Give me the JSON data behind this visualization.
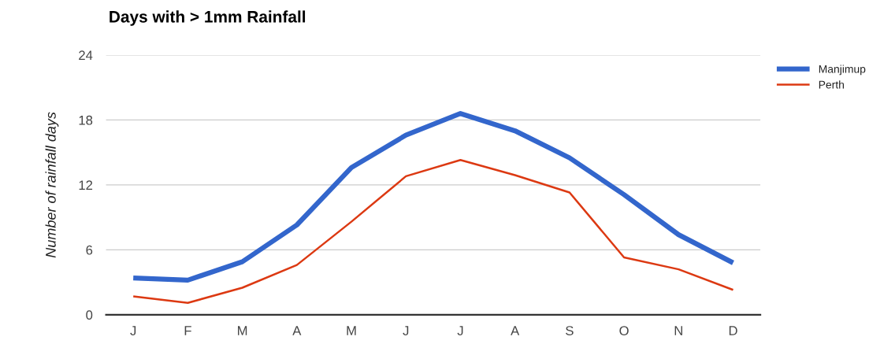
{
  "chart_data": {
    "type": "line",
    "title": "Days with > 1mm Rainfall",
    "ylabel": "Number of rainfall days",
    "categories": [
      "J",
      "F",
      "M",
      "A",
      "M",
      "J",
      "J",
      "A",
      "S",
      "O",
      "N",
      "D"
    ],
    "series": [
      {
        "name": "Manjimup",
        "color": "#3366cc",
        "values": [
          3.4,
          3.2,
          4.9,
          8.3,
          13.6,
          16.6,
          18.6,
          17.0,
          14.5,
          11.1,
          7.4,
          4.8
        ]
      },
      {
        "name": "Perth",
        "color": "#dc3912",
        "values": [
          1.7,
          1.1,
          2.5,
          4.6,
          8.6,
          12.8,
          14.3,
          12.9,
          11.3,
          5.3,
          4.2,
          2.3
        ]
      }
    ],
    "ylim": [
      0,
      24
    ],
    "yticks": [
      0,
      6,
      12,
      18,
      24
    ],
    "grid": "y",
    "legend": "top right",
    "line_style": "solid",
    "marker": "none"
  }
}
